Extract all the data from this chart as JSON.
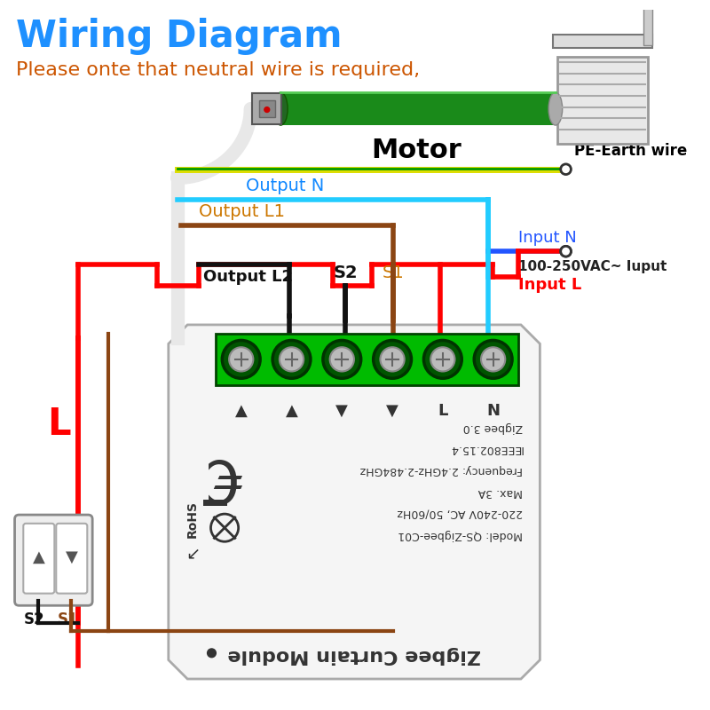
{
  "title": "Wiring Diagram",
  "subtitle": "Please onte that neutral wire is required,",
  "title_color": "#1E90FF",
  "subtitle_color": "#CC5500",
  "bg_color": "#FFFFFF",
  "labels": {
    "motor": "Motor",
    "pe_earth": "PE-Earth wire",
    "output_n": "Output N",
    "output_l1": "Output L1",
    "output_l2": "Output L2",
    "s2": "S2",
    "s1": "S1",
    "input_n": "Input N",
    "input_l": "Input L",
    "input_voltage": "100-250VAC~ Iuput",
    "L_label": "L",
    "S2_bottom": "S2",
    "S1_bottom": "S1"
  },
  "colors": {
    "earth_yellow": "#DDDD00",
    "earth_green": "#009900",
    "neutral_light": "#22BBFF",
    "neutral_dark": "#2255FF",
    "brown": "#8B4513",
    "red": "#FF0000",
    "black": "#111111",
    "white_cable": "#E8E8E8",
    "module_fill": "#F2F2F2",
    "module_edge": "#BBBBBB",
    "terminal_green": "#00CC00",
    "terminal_dark": "#005500"
  },
  "lw_wire": 3,
  "lw_white": 11
}
